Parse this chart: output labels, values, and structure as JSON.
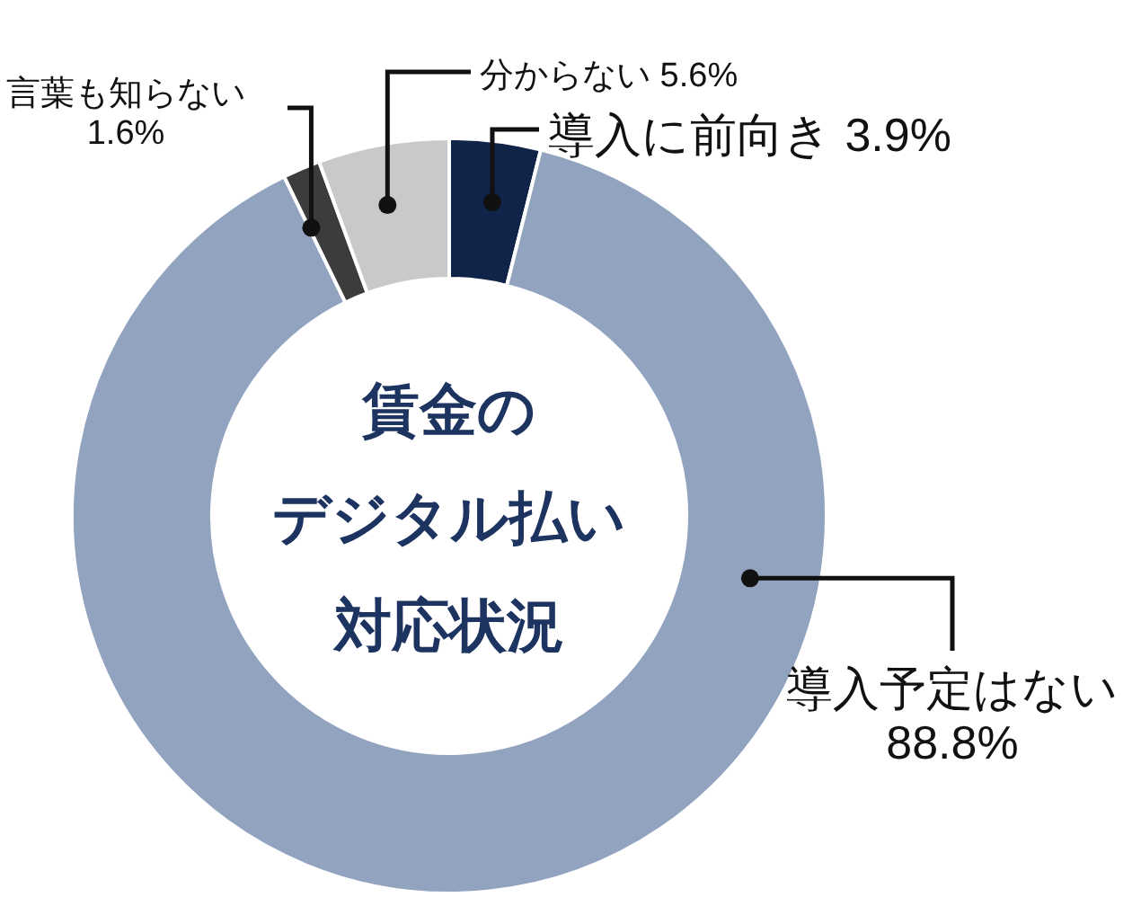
{
  "chart_data": {
    "type": "donut",
    "title": "賃金のデジタル払い対応状況",
    "categories": [
      "導入に前向き",
      "導入予定はない",
      "言葉も知らない",
      "分からない"
    ],
    "values": [
      3.9,
      88.8,
      1.6,
      5.6
    ],
    "value_labels": [
      "3.9%",
      "88.8%",
      "1.6%",
      "5.6%"
    ],
    "colors": [
      "#10244a",
      "#92a3bf",
      "#3c3c3c",
      "#c9c9c9"
    ]
  }
}
